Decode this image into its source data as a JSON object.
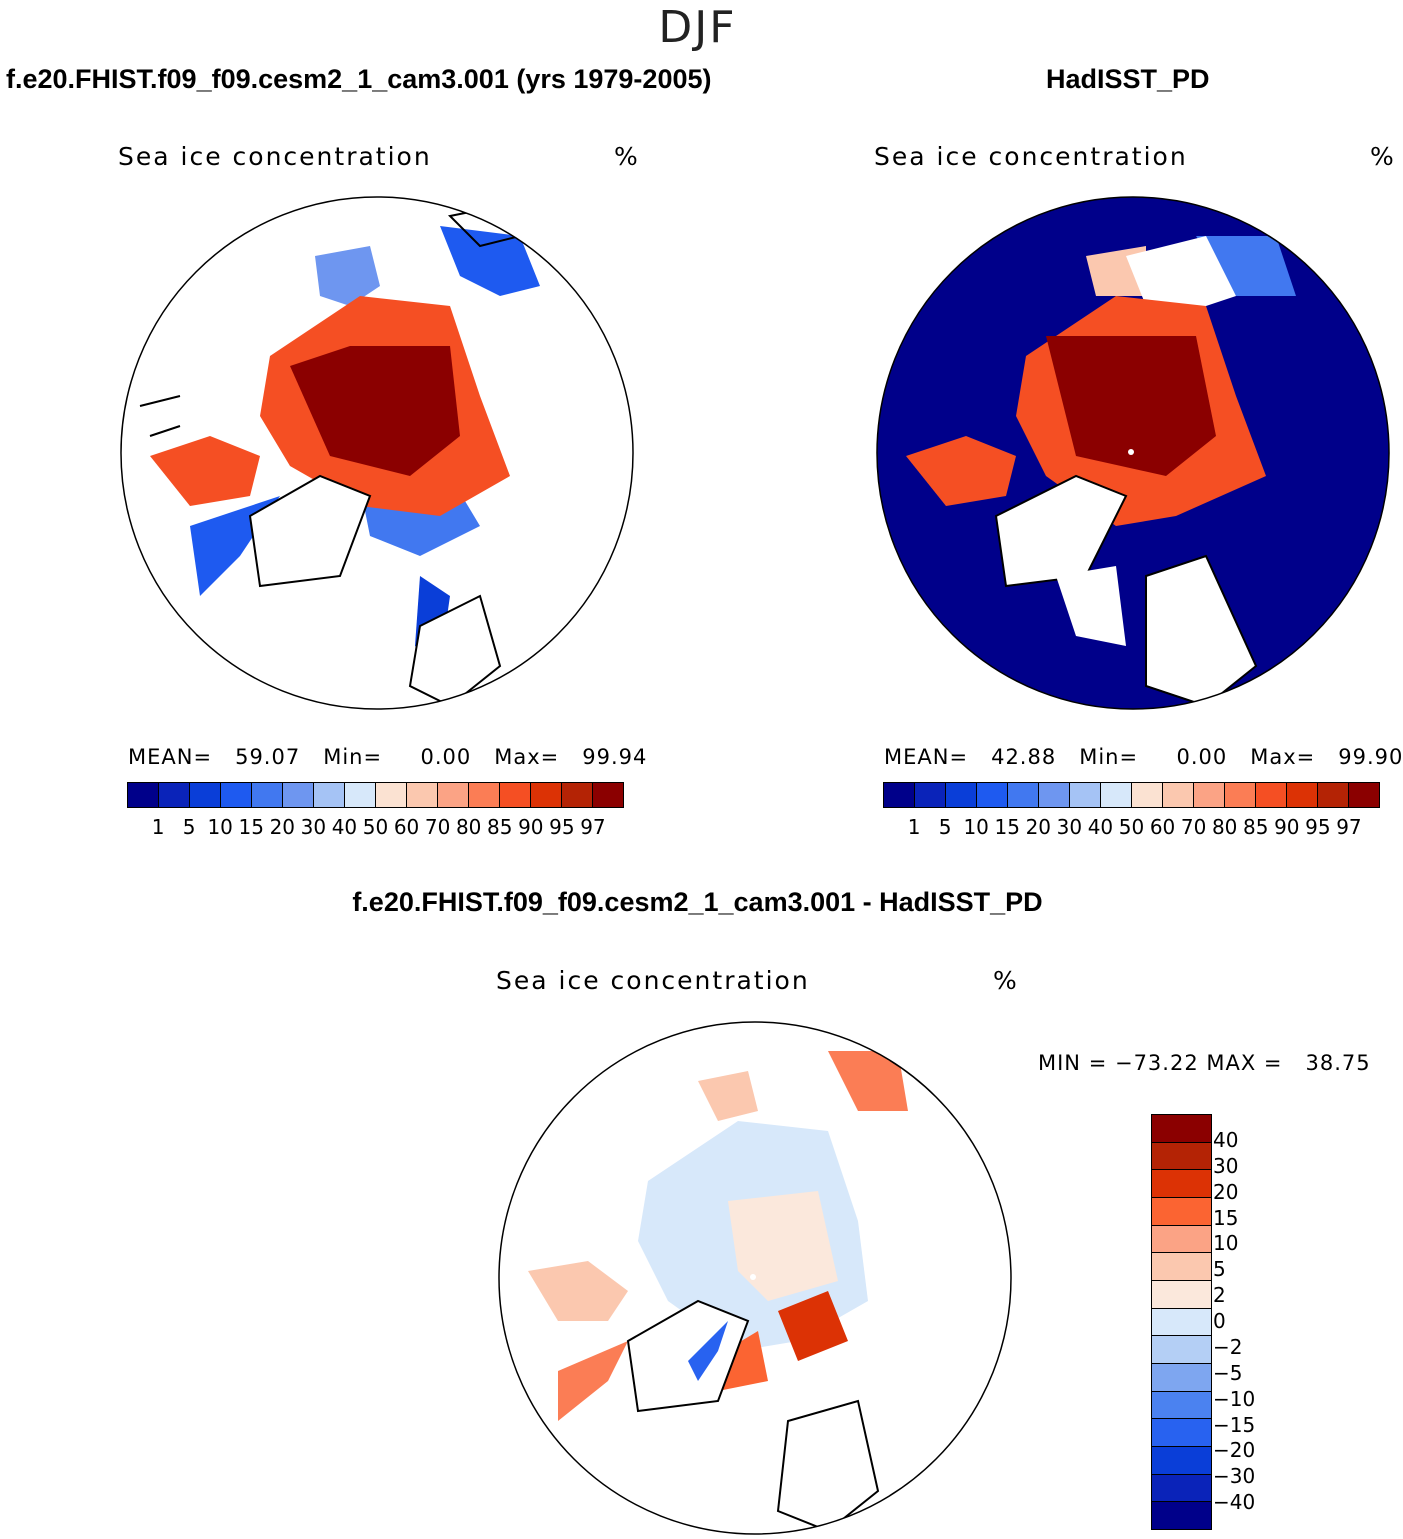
{
  "season": "DJF",
  "panels": [
    {
      "title": "f.e20.FHIST.f09_f09.cesm2_1_cam3.001 (yrs 1979-2005)",
      "variable": "Sea ice concentration",
      "units": "%",
      "stats": "MEAN=   59.07   Min=     0.00   Max=   99.94"
    },
    {
      "title": "HadISST_PD",
      "variable": "Sea ice concentration",
      "units": "%",
      "stats": "MEAN=   42.88   Min=     0.00   Max=   99.90"
    }
  ],
  "diff_panel": {
    "title": "f.e20.FHIST.f09_f09.cesm2_1_cam3.001 - HadISST_PD",
    "variable": "Sea ice concentration",
    "units": "%",
    "minmax": "MIN = −73.22 MAX =   38.75"
  },
  "colorbar_abs": {
    "colors": [
      "#00008a",
      "#0a23b9",
      "#0a3ed8",
      "#1e5af0",
      "#4178f0",
      "#6e96f0",
      "#a5c3f5",
      "#d7e8fa",
      "#fbe2d2",
      "#fbc8af",
      "#fba385",
      "#fb7d55",
      "#f54f23",
      "#dc3205",
      "#b42305",
      "#8b0000"
    ],
    "ticks": [
      "1",
      "5",
      "10",
      "15",
      "20",
      "30",
      "40",
      "50",
      "60",
      "70",
      "80",
      "85",
      "90",
      "95",
      "97"
    ]
  },
  "colorbar_diff": {
    "colors": [
      "#8b0000",
      "#b42305",
      "#dc3205",
      "#fb6432",
      "#fba385",
      "#fbc8af",
      "#fbe8dc",
      "#d7e8fa",
      "#b4cff5",
      "#7ea6f0",
      "#4b82f0",
      "#2862f0",
      "#0a3ed8",
      "#0a23b9",
      "#00008a"
    ],
    "ticks": [
      "40",
      "30",
      "20",
      "15",
      "10",
      "5",
      "2",
      "0",
      "−2",
      "−5",
      "−10",
      "−15",
      "−20",
      "−30",
      "−40"
    ]
  }
}
